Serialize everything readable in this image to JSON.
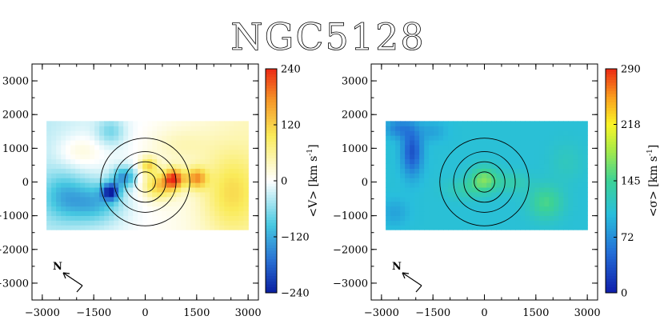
{
  "title": "NGC5128",
  "colors": {
    "axis": "#000000",
    "background": "#ffffff"
  },
  "chart_data": [
    {
      "type": "heatmap",
      "name": "velocity-map",
      "quantity_label": "<V> [km s",
      "unit_superscript": "-1",
      "unit_close": "]",
      "xlim": [
        -3300,
        3300
      ],
      "ylim": [
        -3500,
        3500
      ],
      "xticks": [
        -3000,
        -1500,
        0,
        1500,
        3000
      ],
      "yticks": [
        3000,
        2000,
        1000,
        0,
        -1000,
        -2000,
        -3000
      ],
      "xtick_labels": [
        "−3000",
        "−1500",
        "0",
        "1500",
        "3000"
      ],
      "ytick_labels": [
        "3000",
        "2000",
        "1000",
        "0",
        "−1000",
        "−2000",
        "−3000"
      ],
      "field_x": [
        -2800,
        3000
      ],
      "field_y": [
        -1350,
        1850
      ],
      "color_range": [
        -240,
        240
      ],
      "colorbar_ticks": [
        240,
        120,
        0,
        -120,
        -240
      ],
      "colorbar_labels": [
        "240",
        "120",
        "0",
        "−120",
        "−240"
      ],
      "colormap": "diverging",
      "circle_radii": [
        300,
        600,
        900,
        1300
      ],
      "circle_center": [
        0,
        0
      ],
      "compass_label": "N",
      "features": [
        {
          "x": 850,
          "y": 100,
          "value": 210,
          "rx": 280,
          "ry": 300
        },
        {
          "x": 1500,
          "y": 120,
          "value": 150,
          "rx": 300,
          "ry": 300
        },
        {
          "x": 400,
          "y": -100,
          "value": 120,
          "rx": 450,
          "ry": 400
        },
        {
          "x": 100,
          "y": 500,
          "value": 110,
          "rx": 250,
          "ry": 250
        },
        {
          "x": 2500,
          "y": -300,
          "value": 80,
          "rx": 800,
          "ry": 1200
        },
        {
          "x": -1000,
          "y": -280,
          "value": -200,
          "rx": 250,
          "ry": 250
        },
        {
          "x": -600,
          "y": 150,
          "value": -130,
          "rx": 350,
          "ry": 300
        },
        {
          "x": -1500,
          "y": -600,
          "value": -100,
          "rx": 800,
          "ry": 600
        },
        {
          "x": -2400,
          "y": -400,
          "value": -70,
          "rx": 600,
          "ry": 700
        },
        {
          "x": -1000,
          "y": 1500,
          "value": -60,
          "rx": 400,
          "ry": 400
        },
        {
          "x": -1900,
          "y": 900,
          "value": 40,
          "rx": 700,
          "ry": 500
        },
        {
          "x": 1000,
          "y": 1100,
          "value": 30,
          "rx": 900,
          "ry": 500
        }
      ]
    },
    {
      "type": "heatmap",
      "name": "dispersion-map",
      "quantity_label": "<σ> [km s",
      "unit_superscript": "-1",
      "unit_close": "]",
      "xlim": [
        -3300,
        3300
      ],
      "ylim": [
        -3500,
        3500
      ],
      "xticks": [
        -3000,
        -1500,
        0,
        1500,
        3000
      ],
      "yticks": [
        3000,
        2000,
        1000,
        0,
        -1000,
        -2000,
        -3000
      ],
      "xtick_labels": [
        "−3000",
        "−1500",
        "0",
        "1500",
        "3000"
      ],
      "ytick_labels": [
        "3000",
        "2000",
        "1000",
        "0",
        "−1000",
        "−2000",
        "−3000"
      ],
      "field_x": [
        -2800,
        3000
      ],
      "field_y": [
        -1350,
        1850
      ],
      "color_range": [
        0,
        290
      ],
      "colorbar_ticks": [
        290,
        218,
        145,
        72,
        0
      ],
      "colorbar_labels": [
        "290",
        "218",
        "145",
        "72",
        "0"
      ],
      "colormap": "rainbow",
      "base_value": 105,
      "circle_radii": [
        300,
        600,
        900,
        1300
      ],
      "circle_center": [
        0,
        0
      ],
      "compass_label": "N",
      "features": [
        {
          "x": -2100,
          "y": 900,
          "value": -70,
          "rx": 300,
          "ry": 700
        },
        {
          "x": -2500,
          "y": 1600,
          "value": -40,
          "rx": 400,
          "ry": 300
        },
        {
          "x": -1500,
          "y": 1500,
          "value": -20,
          "rx": 400,
          "ry": 300
        },
        {
          "x": 0,
          "y": 100,
          "value": 60,
          "rx": 400,
          "ry": 350
        },
        {
          "x": 1800,
          "y": -600,
          "value": 45,
          "rx": 500,
          "ry": 500
        },
        {
          "x": -500,
          "y": -200,
          "value": 25,
          "rx": 600,
          "ry": 300
        },
        {
          "x": 800,
          "y": 0,
          "value": 25,
          "rx": 500,
          "ry": 300
        },
        {
          "x": 2400,
          "y": 600,
          "value": 15,
          "rx": 500,
          "ry": 600
        },
        {
          "x": -2600,
          "y": -900,
          "value": -20,
          "rx": 400,
          "ry": 400
        }
      ]
    }
  ]
}
